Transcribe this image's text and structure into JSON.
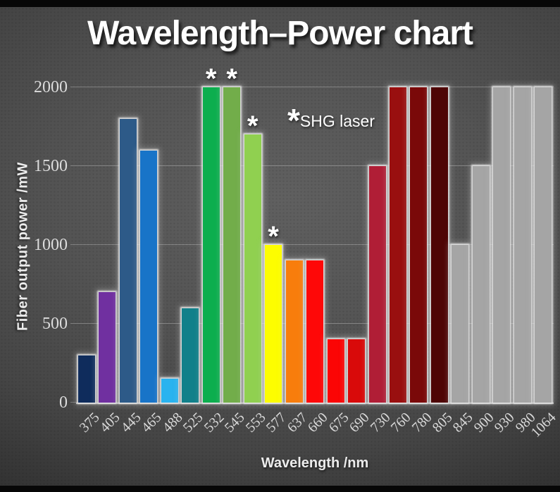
{
  "slide": {
    "title": "Wavelength–Power chart"
  },
  "annotation": {
    "marker": "*",
    "label": "SHG laser"
  },
  "chart_data": {
    "type": "bar",
    "title": "Wavelength–Power chart",
    "xlabel": "Wavelength /nm",
    "ylabel": "Fiber output power /mW",
    "ylim": [
      0,
      2000
    ],
    "yticks": [
      0,
      500,
      1000,
      1500,
      2000
    ],
    "grid": true,
    "legend_note": "* = SHG laser",
    "categories": [
      "375",
      "405",
      "445",
      "465",
      "488",
      "525",
      "532",
      "545",
      "553",
      "577",
      "637",
      "660",
      "675",
      "690",
      "730",
      "760",
      "780",
      "805",
      "845",
      "900",
      "930",
      "980",
      "1064"
    ],
    "values": [
      300,
      700,
      1800,
      1600,
      150,
      600,
      2000,
      2000,
      1700,
      1000,
      900,
      900,
      400,
      400,
      1500,
      2000,
      2000,
      2000,
      1000,
      1500,
      2000,
      2000,
      2000
    ],
    "bar_colors": [
      "#0f2c5c",
      "#7030a0",
      "#2d5a88",
      "#1874c8",
      "#29b3ef",
      "#11808a",
      "#0cae4e",
      "#72ad4a",
      "#90d050",
      "#fdfd00",
      "#f87d0c",
      "#fe0808",
      "#fb0505",
      "#d90a0a",
      "#b01e36",
      "#990f0f",
      "#7a0909",
      "#4e0505",
      "#a5a5a5",
      "#a5a5a5",
      "#a5a5a5",
      "#a5a5a5",
      "#a5a5a5"
    ],
    "shg_marked": [
      "532",
      "545",
      "553",
      "577"
    ],
    "marker_glyph": "*"
  },
  "colors": {
    "background_center": "#606060",
    "background_edge": "#1e1e1e",
    "title_text": "#ffffff",
    "tick_text": "#d9d9d9",
    "axis_title_text": "#ececec",
    "gridline": "rgba(255,255,255,0.28)",
    "bar_glow": "#eeeeee",
    "gray_bar": "#a5a5a5"
  }
}
